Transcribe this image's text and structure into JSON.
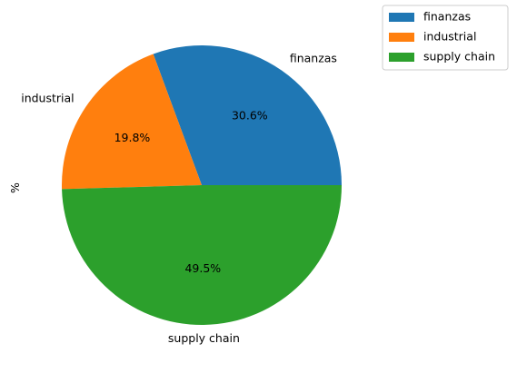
{
  "chart_data": {
    "type": "pie",
    "ylabel": "%",
    "categories": [
      "finanzas",
      "industrial",
      "supply chain"
    ],
    "values": [
      30.6,
      19.8,
      49.5
    ],
    "value_labels": [
      "30.6%",
      "19.8%",
      "49.5%"
    ],
    "colors": [
      "#1f77b4",
      "#ff7f0e",
      "#2ca02c"
    ],
    "start_angle": "0° (3 o'clock), counterclockwise",
    "legend": {
      "placement": "top-right, outside plot",
      "entries": [
        "finanzas",
        "industrial",
        "supply chain"
      ]
    }
  }
}
